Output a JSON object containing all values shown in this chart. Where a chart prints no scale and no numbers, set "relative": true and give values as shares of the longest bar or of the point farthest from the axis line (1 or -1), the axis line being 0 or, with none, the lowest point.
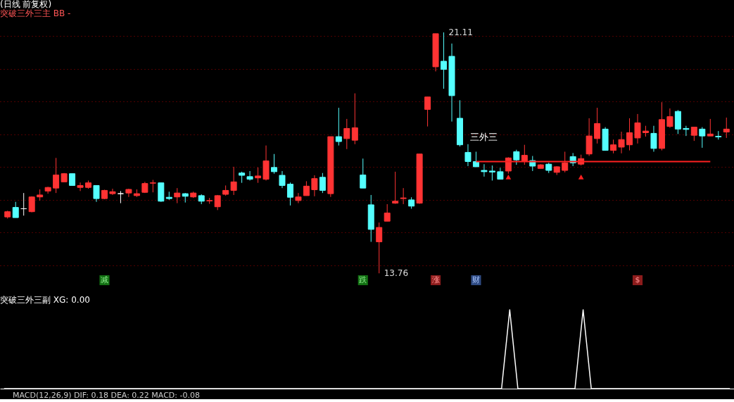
{
  "chart_data": [
    {
      "type": "candlestick",
      "title": "(日线 前复权)",
      "subtitle": "突破三外三主 BB -",
      "categories": [
        null,
        null,
        null,
        null,
        null,
        null,
        null,
        null,
        null,
        null,
        null,
        null,
        null,
        null,
        null,
        null,
        null,
        null,
        null,
        null,
        null,
        null,
        null,
        null,
        null,
        null,
        null,
        null,
        null,
        null,
        null,
        null,
        null,
        null,
        null,
        null,
        null,
        null,
        null,
        null,
        null,
        null,
        null,
        null,
        null,
        null,
        null,
        null,
        null,
        null,
        null,
        null,
        null,
        null,
        null,
        null,
        null,
        null,
        null,
        null,
        null,
        null,
        null,
        null,
        null,
        null,
        null,
        null,
        null,
        null,
        null,
        null,
        null,
        null,
        null,
        null,
        null,
        null,
        null,
        null,
        null,
        null,
        null,
        null,
        null,
        null,
        null,
        null,
        null,
        null
      ],
      "ohlc": [
        [
          15.48,
          15.67,
          15.43,
          15.64
        ],
        [
          15.77,
          15.94,
          15.46,
          15.46
        ],
        [
          15.73,
          16.21,
          15.52,
          15.73
        ],
        [
          15.64,
          16.11,
          15.62,
          16.09
        ],
        [
          16.09,
          16.32,
          15.98,
          16.15
        ],
        [
          16.27,
          16.4,
          16.19,
          16.38
        ],
        [
          16.36,
          17.28,
          16.21,
          16.76
        ],
        [
          16.55,
          16.82,
          16.55,
          16.8
        ],
        [
          16.8,
          16.8,
          16.44,
          16.44
        ],
        [
          16.38,
          16.53,
          16.27,
          16.44
        ],
        [
          16.38,
          16.59,
          16.34,
          16.52
        ],
        [
          16.44,
          16.44,
          15.94,
          16.04
        ],
        [
          16.04,
          16.31,
          16.02,
          16.29
        ],
        [
          16.19,
          16.34,
          16.15,
          16.25
        ],
        [
          16.19,
          16.27,
          15.9,
          16.19
        ],
        [
          16.21,
          16.34,
          16.09,
          16.32
        ],
        [
          16.13,
          16.32,
          16.09,
          16.19
        ],
        [
          16.23,
          16.55,
          16.21,
          16.5
        ],
        [
          16.51,
          16.61,
          16.23,
          16.52
        ],
        [
          16.52,
          16.52,
          15.94,
          15.96
        ],
        [
          16.08,
          16.25,
          16.0,
          16.04
        ],
        [
          16.09,
          16.36,
          15.9,
          16.21
        ],
        [
          16.19,
          16.21,
          15.92,
          16.11
        ],
        [
          16.09,
          16.25,
          16.06,
          16.21
        ],
        [
          16.13,
          16.17,
          15.87,
          15.96
        ],
        [
          15.97,
          16.06,
          15.88,
          15.98
        ],
        [
          15.79,
          16.15,
          15.69,
          16.13
        ],
        [
          16.17,
          16.44,
          16.13,
          16.29
        ],
        [
          16.29,
          17.01,
          16.15,
          16.55
        ],
        [
          16.82,
          16.86,
          16.52,
          16.75
        ],
        [
          16.71,
          16.88,
          16.59,
          16.63
        ],
        [
          16.67,
          16.99,
          16.52,
          16.73
        ],
        [
          16.63,
          17.66,
          16.59,
          17.19
        ],
        [
          16.99,
          17.4,
          16.8,
          16.86
        ],
        [
          16.75,
          16.88,
          16.36,
          16.44
        ],
        [
          16.48,
          16.53,
          15.83,
          16.08
        ],
        [
          15.98,
          16.21,
          15.9,
          16.09
        ],
        [
          16.13,
          16.57,
          16.13,
          16.42
        ],
        [
          16.31,
          16.75,
          16.11,
          16.65
        ],
        [
          16.69,
          16.82,
          16.21,
          16.29
        ],
        [
          16.19,
          17.93,
          16.09,
          17.93
        ],
        [
          17.93,
          18.81,
          17.66,
          17.78
        ],
        [
          17.87,
          18.47,
          17.55,
          18.18
        ],
        [
          17.82,
          19.25,
          17.7,
          18.2
        ],
        [
          16.76,
          17.26,
          16.36,
          16.36
        ],
        [
          15.85,
          16.15,
          14.72,
          15.1
        ],
        [
          14.72,
          15.31,
          13.76,
          15.16
        ],
        [
          15.35,
          15.87,
          15.35,
          15.6
        ],
        [
          15.9,
          16.86,
          15.88,
          15.96
        ],
        [
          16.04,
          16.36,
          15.87,
          16.06
        ],
        [
          16.0,
          16.08,
          15.73,
          15.81
        ],
        [
          15.9,
          17.4,
          15.88,
          17.4
        ],
        [
          18.76,
          19.14,
          18.24,
          19.14
        ],
        [
          20.06,
          21.07,
          19.92,
          21.07
        ],
        [
          20.23,
          21.11,
          19.39,
          19.98
        ],
        [
          20.38,
          20.77,
          18.39,
          19.18
        ],
        [
          18.49,
          19.04,
          17.63,
          17.68
        ],
        [
          17.45,
          17.7,
          17.03,
          17.17
        ],
        [
          17.17,
          17.47,
          17.01,
          17.01
        ],
        [
          16.9,
          17.09,
          16.71,
          16.86
        ],
        [
          16.88,
          17.05,
          16.59,
          16.85
        ],
        [
          16.86,
          16.98,
          16.63,
          16.63
        ],
        [
          16.88,
          17.3,
          16.8,
          17.28
        ],
        [
          17.47,
          17.53,
          17.07,
          17.22
        ],
        [
          17.19,
          17.68,
          17.07,
          17.36
        ],
        [
          17.2,
          17.34,
          16.88,
          17.03
        ],
        [
          16.96,
          17.09,
          16.96,
          17.07
        ],
        [
          17.09,
          17.13,
          16.82,
          16.9
        ],
        [
          16.84,
          17.03,
          16.76,
          17.01
        ],
        [
          16.9,
          17.47,
          16.84,
          17.13
        ],
        [
          17.32,
          17.43,
          17.03,
          17.13
        ],
        [
          17.09,
          17.38,
          17.05,
          17.26
        ],
        [
          17.4,
          18.49,
          17.34,
          17.95
        ],
        [
          17.87,
          18.81,
          17.72,
          18.33
        ],
        [
          18.16,
          18.22,
          17.51,
          17.51
        ],
        [
          17.51,
          17.84,
          17.42,
          17.68
        ],
        [
          17.61,
          18.08,
          17.42,
          17.84
        ],
        [
          17.68,
          18.49,
          17.51,
          18.05
        ],
        [
          17.89,
          18.62,
          17.72,
          18.35
        ],
        [
          18.05,
          18.26,
          17.93,
          18.1
        ],
        [
          18.03,
          18.26,
          17.47,
          17.57
        ],
        [
          17.57,
          18.98,
          17.51,
          18.45
        ],
        [
          18.24,
          18.79,
          18.2,
          18.54
        ],
        [
          18.7,
          18.74,
          18.01,
          18.16
        ],
        [
          18.18,
          18.26,
          17.95,
          18.15
        ],
        [
          17.97,
          18.22,
          17.8,
          18.22
        ],
        [
          18.16,
          18.22,
          17.59,
          17.95
        ],
        [
          17.95,
          18.47,
          17.95,
          18.01
        ],
        [
          17.94,
          18.1,
          17.84,
          17.92
        ],
        [
          18.07,
          18.51,
          17.89,
          18.16
        ]
      ],
      "colors": [
        "#ff3333",
        "#54ffff",
        "#ffffff",
        "#ff3333",
        "#ff3333",
        "#ff3333",
        "#ff3333",
        "#ff3333",
        "#54ffff",
        "#ff3333",
        "#ff3333",
        "#54ffff",
        "#ff3333",
        "#ff3333",
        "#ffffff",
        "#ff3333",
        "#ff3333",
        "#ff3333",
        "#ff3333",
        "#54ffff",
        "#54ffff",
        "#ff3333",
        "#54ffff",
        "#ff3333",
        "#54ffff",
        "#ff3333",
        "#ff3333",
        "#ff3333",
        "#ff3333",
        "#54ffff",
        "#54ffff",
        "#ff3333",
        "#ff3333",
        "#54ffff",
        "#54ffff",
        "#54ffff",
        "#ff3333",
        "#ff3333",
        "#ff3333",
        "#54ffff",
        "#ff3333",
        "#54ffff",
        "#ff3333",
        "#ff3333",
        "#54ffff",
        "#54ffff",
        "#ff3333",
        "#ff3333",
        "#ff3333",
        "#ff3333",
        "#54ffff",
        "#ff3333",
        "#ff3333",
        "#ff3333",
        "#54ffff",
        "#54ffff",
        "#54ffff",
        "#54ffff",
        "#54ffff",
        "#54ffff",
        "#54ffff",
        "#54ffff",
        "#ff3333",
        "#54ffff",
        "#ff3333",
        "#54ffff",
        "#ff3333",
        "#54ffff",
        "#ff3333",
        "#ff3333",
        "#54ffff",
        "#ff3333",
        "#ff3333",
        "#ff3333",
        "#54ffff",
        "#ff3333",
        "#ff3333",
        "#ff3333",
        "#ff3333",
        "#ff3333",
        "#54ffff",
        "#ff3333",
        "#ff3333",
        "#54ffff",
        "#54ffff",
        "#ff3333",
        "#54ffff",
        "#ff3333",
        "#54ffff",
        "#ff3333"
      ],
      "yticks": [
        {
          "value": 14,
          "label": null
        },
        {
          "value": 15,
          "label": null
        },
        {
          "value": 16,
          "label": null
        },
        {
          "value": 17,
          "label": null
        },
        {
          "value": 18,
          "label": null
        },
        {
          "value": 19,
          "label": null
        },
        {
          "value": 20,
          "label": null
        },
        {
          "value": 21,
          "label": null
        }
      ],
      "grid": "y",
      "tick_labels": false,
      "annotations": [
        "21.11",
        "13.76"
      ],
      "series": [
        {
          "type": "line",
          "color": "#ff2020",
          "values": [
            null,
            null,
            null,
            null,
            null,
            null,
            null,
            null,
            null,
            null,
            null,
            null,
            null,
            null,
            null,
            null,
            null,
            null,
            null,
            null,
            null,
            null,
            null,
            null,
            null,
            null,
            null,
            null,
            null,
            null,
            null,
            null,
            null,
            null,
            null,
            null,
            null,
            null,
            null,
            null,
            null,
            null,
            null,
            null,
            null,
            null,
            null,
            null,
            null,
            null,
            null,
            null,
            null,
            null,
            null,
            null,
            null,
            null,
            17.17,
            17.17,
            17.17,
            17.17,
            17.17,
            17.17,
            17.17,
            17.17,
            17.17,
            17.17,
            17.17,
            17.17,
            17.17,
            17.17,
            17.17,
            17.17,
            17.17,
            17.17,
            17.17,
            17.17,
            17.17,
            17.17,
            17.17,
            17.17,
            17.17,
            17.17,
            17.17,
            17.17,
            17.17,
            17.17,
            null,
            null
          ],
          "value_labels": [
            null,
            null,
            null,
            null,
            null,
            null,
            null,
            null,
            null,
            null,
            null,
            null,
            null,
            null,
            null,
            null,
            null,
            null,
            null,
            null,
            null,
            null,
            null,
            null,
            null,
            null,
            null,
            null,
            null,
            null,
            null,
            null,
            null,
            null,
            null,
            null,
            null,
            null,
            null,
            null,
            null,
            null,
            null,
            null,
            null,
            null,
            null,
            null,
            null,
            null,
            null,
            null,
            null,
            null,
            null,
            null,
            null,
            null,
            null,
            "三外三",
            null,
            null,
            null,
            null,
            null,
            null,
            null,
            null,
            null,
            null,
            null,
            null,
            null,
            null,
            null,
            null,
            null,
            null,
            null,
            null,
            null,
            null,
            null,
            null,
            null,
            null,
            null,
            null,
            null,
            null
          ]
        },
        {
          "type": "scatter",
          "marker": "triangle",
          "color": "#ff2020",
          "values": [
            null,
            null,
            null,
            null,
            null,
            null,
            null,
            null,
            null,
            null,
            null,
            null,
            null,
            null,
            null,
            null,
            null,
            null,
            null,
            null,
            null,
            null,
            null,
            null,
            null,
            null,
            null,
            null,
            null,
            null,
            null,
            null,
            null,
            null,
            null,
            null,
            null,
            null,
            null,
            null,
            null,
            null,
            null,
            null,
            null,
            null,
            null,
            null,
            null,
            null,
            null,
            null,
            null,
            null,
            null,
            null,
            null,
            null,
            null,
            null,
            null,
            null,
            16.7,
            null,
            null,
            null,
            null,
            null,
            null,
            null,
            null,
            16.7,
            null,
            null,
            null,
            null,
            null,
            null,
            null,
            null,
            null,
            null,
            null,
            null,
            null,
            null,
            null,
            null,
            null,
            null
          ]
        },
        {
          "type": "scatter",
          "marker": "square",
          "values": [
            null,
            null,
            null,
            null,
            null,
            null,
            null,
            null,
            null,
            null,
            null,
            null,
            13.55,
            null,
            null,
            null,
            null,
            null,
            null,
            null,
            null,
            null,
            null,
            null,
            null,
            null,
            null,
            null,
            null,
            null,
            null,
            null,
            null,
            null,
            null,
            null,
            null,
            null,
            null,
            null,
            null,
            null,
            null,
            null,
            13.55,
            null,
            null,
            null,
            null,
            null,
            null,
            null,
            null,
            13.55,
            null,
            null,
            null,
            null,
            13.55,
            null,
            null,
            null,
            null,
            null,
            null,
            null,
            null,
            null,
            null,
            null,
            null,
            null,
            null,
            null,
            null,
            null,
            null,
            null,
            13.55,
            null,
            null,
            null,
            null,
            null,
            null,
            null,
            null,
            null,
            null,
            null
          ],
          "value_labels": [
            null,
            null,
            null,
            null,
            null,
            null,
            null,
            null,
            null,
            null,
            null,
            null,
            "减",
            null,
            null,
            null,
            null,
            null,
            null,
            null,
            null,
            null,
            null,
            null,
            null,
            null,
            null,
            null,
            null,
            null,
            null,
            null,
            null,
            null,
            null,
            null,
            null,
            null,
            null,
            null,
            null,
            null,
            null,
            null,
            "跌",
            null,
            null,
            null,
            null,
            null,
            null,
            null,
            null,
            "涨",
            null,
            null,
            null,
            null,
            "财",
            null,
            null,
            null,
            null,
            null,
            null,
            null,
            null,
            null,
            null,
            null,
            null,
            null,
            null,
            null,
            null,
            null,
            null,
            null,
            "$",
            null,
            null,
            null,
            null,
            null,
            null,
            null,
            null,
            null,
            null,
            null
          ],
          "colors": [
            null,
            null,
            null,
            null,
            null,
            null,
            null,
            null,
            null,
            null,
            null,
            null,
            "#22cc22",
            null,
            null,
            null,
            null,
            null,
            null,
            null,
            null,
            null,
            null,
            null,
            null,
            null,
            null,
            null,
            null,
            null,
            null,
            null,
            null,
            null,
            null,
            null,
            null,
            null,
            null,
            null,
            null,
            null,
            null,
            null,
            "#22cc22",
            null,
            null,
            null,
            null,
            null,
            null,
            null,
            null,
            "#ff3333",
            null,
            null,
            null,
            null,
            "#5588ee",
            null,
            null,
            null,
            null,
            null,
            null,
            null,
            null,
            null,
            null,
            null,
            null,
            null,
            null,
            null,
            null,
            null,
            null,
            null,
            "#ff3333",
            null,
            null,
            null,
            null,
            null,
            null,
            null,
            null,
            null,
            null,
            null
          ]
        }
      ]
    },
    {
      "type": "line",
      "title": "突破三外三副 XG: 0.00",
      "relative": true,
      "categories": [
        null,
        null,
        null,
        null,
        null,
        null,
        null,
        null,
        null,
        null,
        null,
        null,
        null,
        null,
        null,
        null,
        null,
        null,
        null,
        null,
        null,
        null,
        null,
        null,
        null,
        null,
        null,
        null,
        null,
        null,
        null,
        null,
        null,
        null,
        null,
        null,
        null,
        null,
        null,
        null,
        null,
        null,
        null,
        null,
        null,
        null,
        null,
        null,
        null,
        null,
        null,
        null,
        null,
        null,
        null,
        null,
        null,
        null,
        null,
        null,
        null,
        null,
        null,
        null,
        null,
        null,
        null,
        null,
        null,
        null,
        null,
        null,
        null,
        null,
        null,
        null,
        null,
        null,
        null,
        null,
        null,
        null,
        null,
        null,
        null,
        null,
        null,
        null,
        null,
        null
      ],
      "series": [
        {
          "color": "#ffffff",
          "values": [
            0,
            0,
            0,
            0,
            0,
            0,
            0,
            0,
            0,
            0,
            0,
            0,
            0,
            0,
            0,
            0,
            0,
            0,
            0,
            0,
            0,
            0,
            0,
            0,
            0,
            0,
            0,
            0,
            0,
            0,
            0,
            0,
            0,
            0,
            0,
            0,
            0,
            0,
            0,
            0,
            0,
            0,
            0,
            0,
            0,
            0,
            0,
            0,
            0,
            0,
            0,
            0,
            0,
            0,
            0,
            0,
            0,
            0,
            0,
            0,
            0,
            0,
            1,
            0,
            0,
            0,
            0,
            0,
            0,
            0,
            0,
            1,
            0,
            0,
            0,
            0,
            0,
            0,
            0,
            0,
            0,
            0,
            0,
            0,
            0,
            0,
            0,
            0,
            0,
            0
          ]
        }
      ],
      "annotations": [
        "MACD(12,26,9) DIF: 0.18 DEA: 0.22 MACD: -0.08"
      ]
    }
  ]
}
